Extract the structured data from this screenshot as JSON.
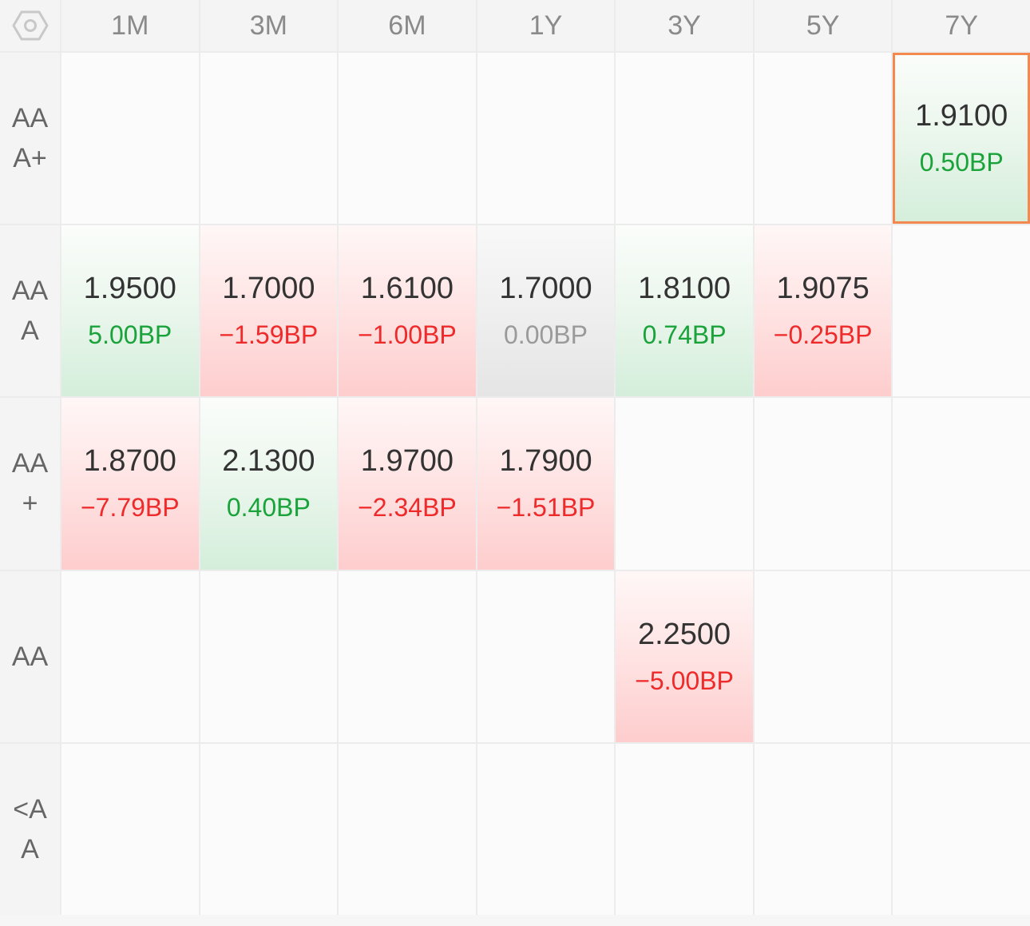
{
  "columns": [
    "1M",
    "3M",
    "6M",
    "1Y",
    "3Y",
    "5Y",
    "7Y"
  ],
  "rows": [
    {
      "label": "AAA+",
      "cells": [
        null,
        null,
        null,
        null,
        null,
        null,
        {
          "rate": "1.9100",
          "change": "0.50BP",
          "trend": "up",
          "selected": true
        }
      ]
    },
    {
      "label": "AAA",
      "cells": [
        {
          "rate": "1.9500",
          "change": "5.00BP",
          "trend": "up"
        },
        {
          "rate": "1.7000",
          "change": "−1.59BP",
          "trend": "down"
        },
        {
          "rate": "1.6100",
          "change": "−1.00BP",
          "trend": "down"
        },
        {
          "rate": "1.7000",
          "change": "0.00BP",
          "trend": "flat"
        },
        {
          "rate": "1.8100",
          "change": "0.74BP",
          "trend": "up"
        },
        {
          "rate": "1.9075",
          "change": "−0.25BP",
          "trend": "down"
        },
        null
      ]
    },
    {
      "label": "AA+",
      "cells": [
        {
          "rate": "1.8700",
          "change": "−7.79BP",
          "trend": "down"
        },
        {
          "rate": "2.1300",
          "change": "0.40BP",
          "trend": "up"
        },
        {
          "rate": "1.9700",
          "change": "−2.34BP",
          "trend": "down"
        },
        {
          "rate": "1.7900",
          "change": "−1.51BP",
          "trend": "down"
        },
        null,
        null,
        null
      ]
    },
    {
      "label": "AA",
      "cells": [
        null,
        null,
        null,
        null,
        {
          "rate": "2.2500",
          "change": "−5.00BP",
          "trend": "down"
        },
        null,
        null
      ]
    },
    {
      "label": "<AA",
      "cells": [
        null,
        null,
        null,
        null,
        null,
        null,
        null
      ]
    }
  ],
  "colors": {
    "up": "#1aa33a",
    "down": "#ee2a2a",
    "flat": "#9a9a9a",
    "selected_border": "#f3894f"
  },
  "icons": {
    "corner": "hexagon-settings-icon"
  }
}
